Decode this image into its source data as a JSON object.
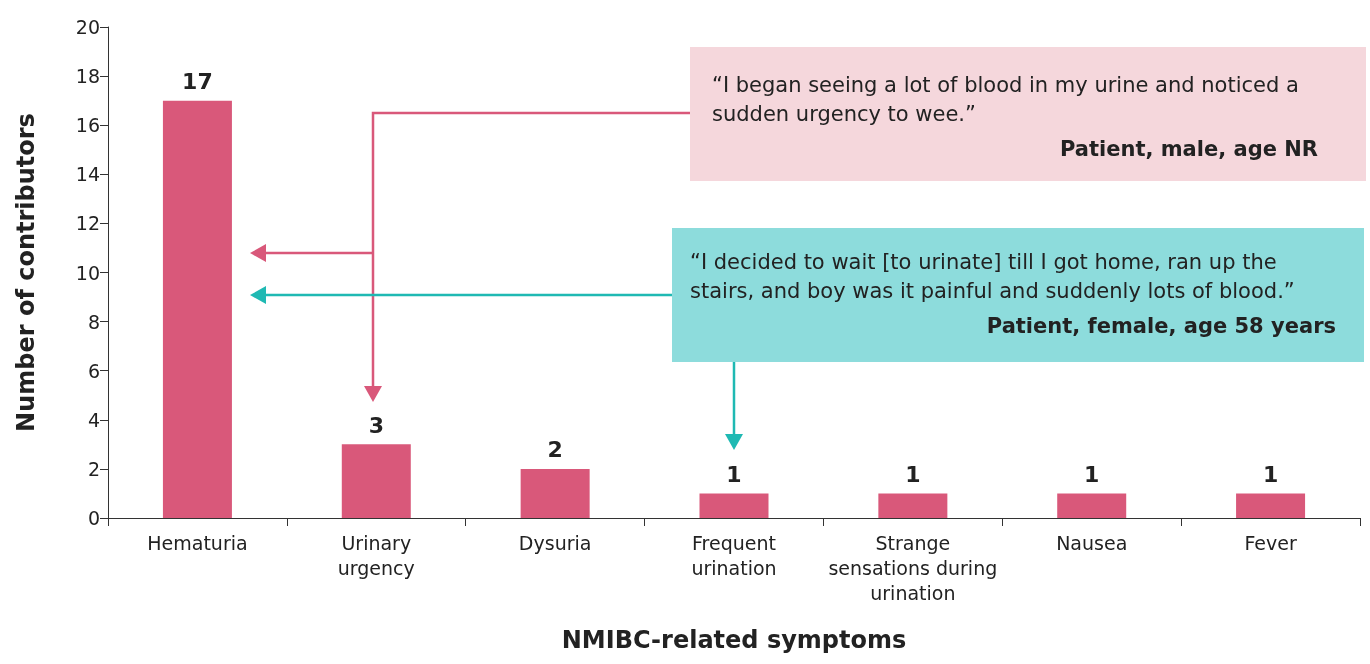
{
  "chart_data": {
    "type": "bar",
    "xlabel": "NMIBC-related symptoms",
    "ylabel": "Number of contributors",
    "categories": [
      "Hematuria",
      "Urinary urgency",
      "Dysuria",
      "Frequent urination",
      "Strange sensations during urination",
      "Nausea",
      "Fever"
    ],
    "values": [
      17,
      3,
      2,
      1,
      1,
      1,
      1
    ],
    "color": "#d9587a",
    "data_labels": true,
    "ylim": [
      0,
      20
    ],
    "yticks": [
      0,
      2,
      4,
      6,
      8,
      10,
      12,
      14,
      16,
      18,
      20
    ],
    "grid": false,
    "annotations": [
      "“I began seeing a lot of blood in my urine and noticed a sudden urgency to wee.”",
      "Patient, male, age NR",
      "“I decided to wait [to urinate] till I got home, ran up the stairs, and boy was it painful and suddenly lots of blood.”",
      "Patient, female, age 58 years"
    ]
  }
}
